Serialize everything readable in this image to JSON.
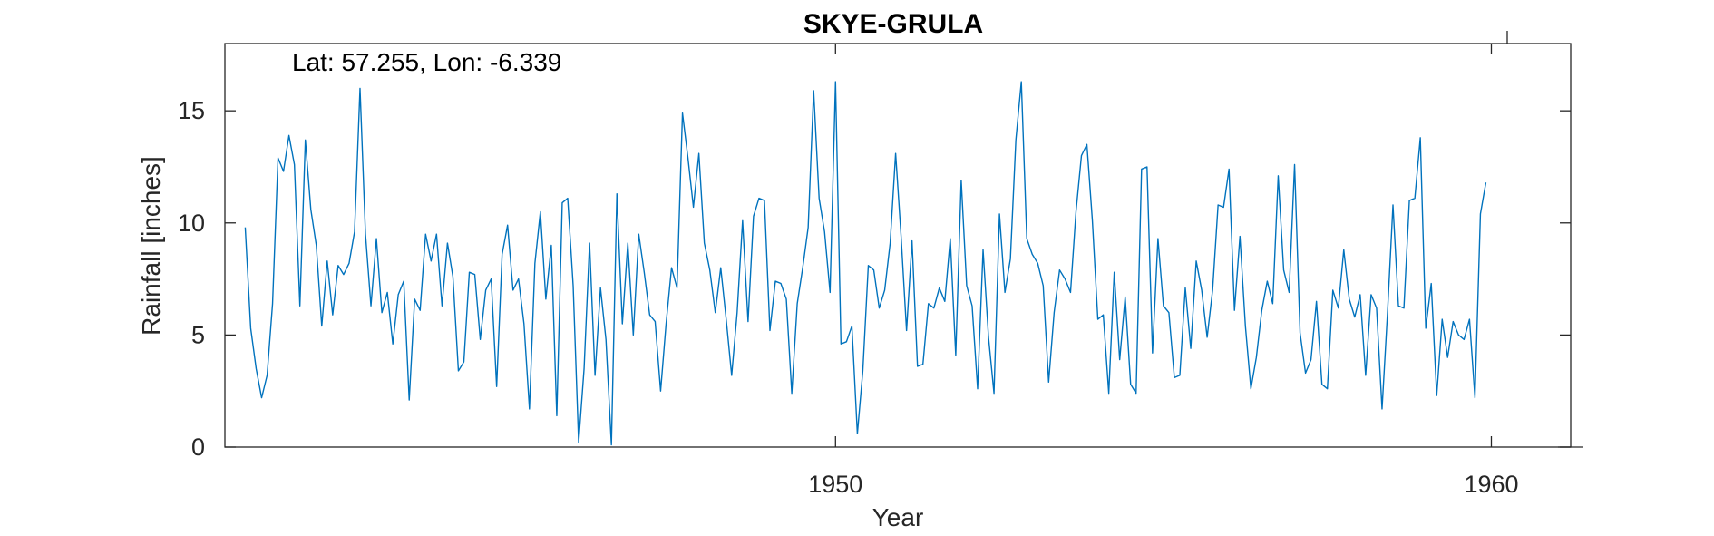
{
  "chart_data": {
    "type": "line",
    "title": "SKYE-GRULA",
    "annotation": "Lat: 57.255, Lon: -6.339",
    "xlabel": "Year",
    "ylabel": "Rainfall [inches]",
    "xlim": [
      1940.69,
      1961.21
    ],
    "ylim": [
      0,
      18
    ],
    "xticks": [
      1950,
      1960
    ],
    "yticks": [
      0,
      5,
      10,
      15
    ],
    "box": true,
    "grid": false,
    "color": "#0072BD",
    "series": [
      {
        "x_start": 1941.0,
        "x_step": 0.0833333,
        "values": [
          9.8,
          5.3,
          3.5,
          2.2,
          3.2,
          6.4,
          12.9,
          12.3,
          13.9,
          12.6,
          6.3,
          13.7,
          10.6,
          9.0,
          5.4,
          8.3,
          5.9,
          8.1,
          7.7,
          8.2,
          9.6,
          16.0,
          9.5,
          6.3,
          9.3,
          6.0,
          6.9,
          4.6,
          6.8,
          7.4,
          2.1,
          6.6,
          6.1,
          9.5,
          8.3,
          9.5,
          6.3,
          9.1,
          7.6,
          3.4,
          3.8,
          7.8,
          7.7,
          4.8,
          7.0,
          7.5,
          2.7,
          8.6,
          9.9,
          7.0,
          7.5,
          5.5,
          1.7,
          8.2,
          10.5,
          6.6,
          9.0,
          1.4,
          10.9,
          11.1,
          7.2,
          0.2,
          3.5,
          9.1,
          3.2,
          7.1,
          4.8,
          0.1,
          11.3,
          5.5,
          9.1,
          5.0,
          9.5,
          7.8,
          5.9,
          5.6,
          2.5,
          5.5,
          8.0,
          7.1,
          14.9,
          12.9,
          10.7,
          13.1,
          9.1,
          7.9,
          6.0,
          8.0,
          5.7,
          3.2,
          6.0,
          10.1,
          5.6,
          10.3,
          11.1,
          11.0,
          5.2,
          7.4,
          7.3,
          6.6,
          2.4,
          6.4,
          8.0,
          9.8,
          15.9,
          11.1,
          9.6,
          6.9,
          16.3,
          4.6,
          4.7,
          5.4,
          0.6,
          3.4,
          8.1,
          7.9,
          6.2,
          7.0,
          9.1,
          13.1,
          9.4,
          5.2,
          9.2,
          3.6,
          3.7,
          6.4,
          6.2,
          7.1,
          6.5,
          9.3,
          4.1,
          11.9,
          7.2,
          6.3,
          2.6,
          8.8,
          4.9,
          2.4,
          10.4,
          6.9,
          8.4,
          13.7,
          16.3,
          9.3,
          8.6,
          8.2,
          7.2,
          2.9,
          6.0,
          7.9,
          7.5,
          6.9,
          10.5,
          13.0,
          13.5,
          10.1,
          5.7,
          5.9,
          2.4,
          7.8,
          3.9,
          6.7,
          2.8,
          2.4,
          12.4,
          12.5,
          4.2,
          9.3,
          6.3,
          6.0,
          3.1,
          3.2,
          7.1,
          4.4,
          8.3,
          7.0,
          4.9,
          7.0,
          10.8,
          10.7,
          12.4,
          6.1,
          9.4,
          5.4,
          2.6,
          4.0,
          6.1,
          7.4,
          6.4,
          12.1,
          7.9,
          6.9,
          12.6,
          5.1,
          3.3,
          3.9,
          6.5,
          2.8,
          2.6,
          7.0,
          6.2,
          8.8,
          6.6,
          5.8,
          6.8,
          3.2,
          6.8,
          6.2,
          1.7,
          6.0,
          10.8,
          6.3,
          6.2,
          11.0,
          11.1,
          13.8,
          5.3,
          7.3,
          2.3,
          5.7,
          4.0,
          5.6,
          5.0,
          4.8,
          5.7,
          2.2,
          10.4,
          11.8
        ]
      }
    ]
  }
}
